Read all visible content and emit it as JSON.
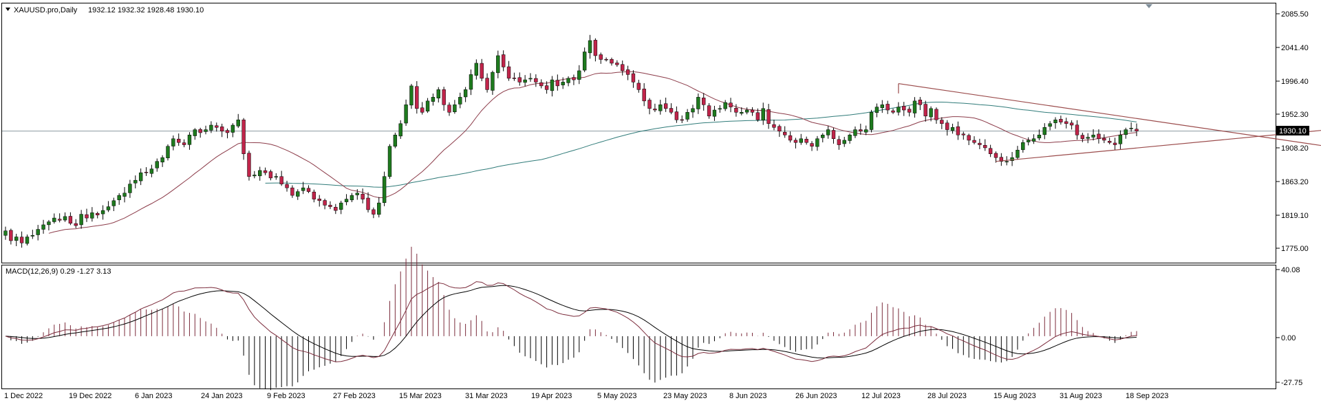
{
  "header": {
    "symbol_line": "XAUUSD.pro,Daily",
    "ohlc": "1932.12 1932.32 1928.48 1930.10"
  },
  "macd_header": "MACD(12,26,9) 0.29 -1.27 3.13",
  "colors": {
    "bull": "#1e7a1e",
    "bear": "#c0244a",
    "ma_short": "#8b3a48",
    "ma_long": "#2e7a78",
    "trend": "#9a4a4a",
    "macd_line": "#000000",
    "signal_line": "#7a2a3a",
    "price_line": "#8a9aa0"
  },
  "chart_data": [
    {
      "type": "line",
      "title": "XAUUSD.pro,Daily",
      "price_axis": {
        "ticks": [
          "2085.50",
          "2041.40",
          "1996.40",
          "1952.30",
          "1908.20",
          "1863.20",
          "1819.10",
          "1775.00"
        ],
        "ylim": [
          1765,
          2095
        ],
        "current_price": "1930.10"
      },
      "x_axis": {
        "ticks": [
          "1 Dec 2022",
          "19 Dec 2022",
          "6 Jan 2023",
          "24 Jan 2023",
          "9 Feb 2023",
          "27 Feb 2023",
          "15 Mar 2023",
          "31 Mar 2023",
          "19 Apr 2023",
          "5 May 2023",
          "23 May 2023",
          "8 Jun 2023",
          "26 Jun 2023",
          "12 Jul 2023",
          "28 Jul 2023",
          "15 Aug 2023",
          "31 Aug 2023",
          "18 Sep 2023"
        ]
      },
      "close": [
        1798,
        1785,
        1790,
        1782,
        1790,
        1792,
        1800,
        1806,
        1810,
        1815,
        1812,
        1817,
        1808,
        1805,
        1820,
        1815,
        1822,
        1819,
        1825,
        1830,
        1838,
        1845,
        1848,
        1860,
        1865,
        1875,
        1875,
        1880,
        1890,
        1895,
        1910,
        1920,
        1915,
        1912,
        1925,
        1932,
        1928,
        1932,
        1938,
        1935,
        1930,
        1928,
        1938,
        1945,
        1900,
        1870,
        1872,
        1878,
        1875,
        1868,
        1870,
        1860,
        1855,
        1845,
        1850,
        1855,
        1850,
        1840,
        1838,
        1832,
        1830,
        1825,
        1835,
        1840,
        1845,
        1848,
        1840,
        1826,
        1820,
        1835,
        1870,
        1910,
        1925,
        1940,
        1965,
        1990,
        1960,
        1955,
        1970,
        1975,
        1985,
        1965,
        1955,
        1965,
        1975,
        1985,
        2005,
        2020,
        2000,
        1985,
        2008,
        2030,
        2015,
        2000,
        2000,
        1995,
        1998,
        2000,
        1995,
        1990,
        1985,
        1998,
        1990,
        1995,
        2000,
        1998,
        2010,
        2035,
        2050,
        2030,
        2025,
        2025,
        2020,
        2018,
        2010,
        2005,
        1995,
        1985,
        1970,
        1960,
        1958,
        1965,
        1960,
        1955,
        1945,
        1945,
        1955,
        1960,
        1975,
        1965,
        1950,
        1958,
        1960,
        1968,
        1962,
        1955,
        1955,
        1958,
        1955,
        1945,
        1960,
        1940,
        1935,
        1930,
        1925,
        1918,
        1915,
        1920,
        1915,
        1910,
        1920,
        1925,
        1932,
        1920,
        1912,
        1918,
        1925,
        1932,
        1930,
        1932,
        1955,
        1962,
        1965,
        1958,
        1955,
        1962,
        1958,
        1955,
        1970,
        1965,
        1950,
        1960,
        1945,
        1940,
        1932,
        1935,
        1925,
        1925,
        1918,
        1915,
        1912,
        1908,
        1900,
        1895,
        1890,
        1890,
        1895,
        1905,
        1915,
        1918,
        1920,
        1925,
        1935,
        1940,
        1945,
        1942,
        1940,
        1938,
        1925,
        1920,
        1922,
        1925,
        1920,
        1918,
        1915,
        1912,
        1925,
        1932,
        1934,
        1930.1
      ]
    },
    {
      "type": "line",
      "title": "MACD(12,26,9) 0.29 -1.27 3.13",
      "axis": {
        "ticks": [
          "40.08",
          "0.00",
          "-27.75"
        ],
        "ylim": [
          -30,
          42
        ]
      },
      "values": {
        "macd": "0.29",
        "signal": "-1.27",
        "histogram": "3.13"
      }
    }
  ]
}
